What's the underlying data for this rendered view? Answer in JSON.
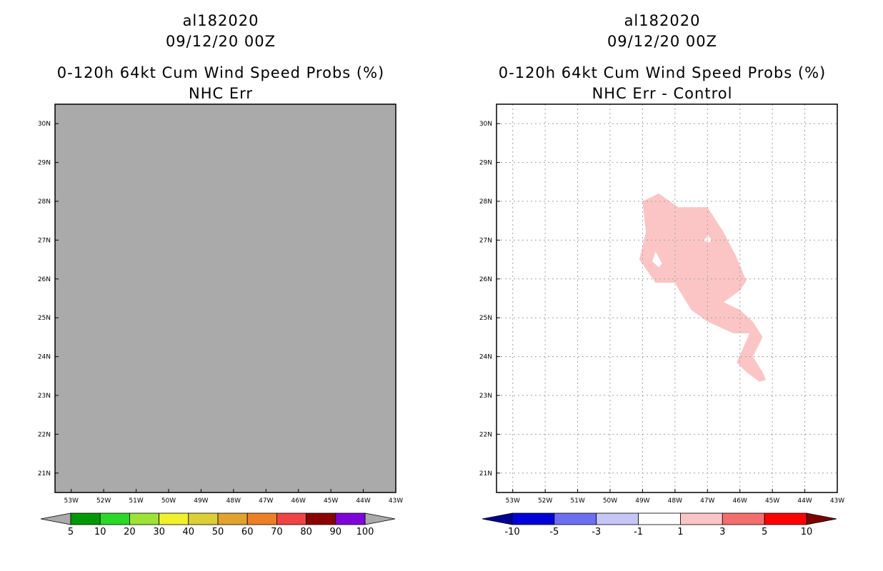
{
  "colors": {
    "land_gray": "#aaaaaa",
    "diff_pink": "#fcc5c5",
    "grid": "#a0a0a0"
  },
  "chart_data": [
    {
      "type": "heatmap",
      "title_lines": [
        "al182020",
        "09/12/20 00Z",
        "0-120h 64kt Cum Wind Speed Probs (%)",
        "NHC Err"
      ],
      "x_ticks": [
        "53W",
        "52W",
        "51W",
        "50W",
        "49W",
        "48W",
        "47W",
        "46W",
        "45W",
        "44W",
        "43W"
      ],
      "y_ticks": [
        "30N",
        "29N",
        "28N",
        "27N",
        "26N",
        "25N",
        "24N",
        "23N",
        "22N",
        "21N"
      ],
      "xlim": [
        -53.5,
        -43
      ],
      "ylim": [
        20.5,
        30.5
      ],
      "grid": false,
      "fill": "uniform gray (no probability above 5%)",
      "colorbar": {
        "labels": [
          "5",
          "10",
          "20",
          "30",
          "40",
          "50",
          "60",
          "70",
          "80",
          "90",
          "100"
        ],
        "colors": [
          "#009800",
          "#2ad82a",
          "#9de236",
          "#f0f02c",
          "#ddcf36",
          "#e1a22e",
          "#ed8026",
          "#f04444",
          "#8b0000",
          "#8000d8"
        ],
        "end_colors": [
          "#aaaaaa",
          "#aaaaaa"
        ]
      }
    },
    {
      "type": "heatmap",
      "title_lines": [
        "al182020",
        "09/12/20 00Z",
        "0-120h 64kt Cum Wind Speed Probs (%)",
        "NHC Err - Control"
      ],
      "x_ticks": [
        "53W",
        "52W",
        "51W",
        "50W",
        "49W",
        "48W",
        "47W",
        "46W",
        "45W",
        "44W",
        "43W"
      ],
      "y_ticks": [
        "30N",
        "29N",
        "28N",
        "27N",
        "26N",
        "25N",
        "24N",
        "23N",
        "22N",
        "21N"
      ],
      "xlim": [
        -53.5,
        -43
      ],
      "ylim": [
        20.5,
        30.5
      ],
      "grid": true,
      "region": {
        "category": "1 to 3",
        "lonlat": [
          [
            -49.0,
            28.0
          ],
          [
            -48.5,
            28.2
          ],
          [
            -47.9,
            27.85
          ],
          [
            -47.0,
            27.85
          ],
          [
            -46.5,
            27.2
          ],
          [
            -46.1,
            26.55
          ],
          [
            -45.8,
            25.95
          ],
          [
            -46.0,
            25.7
          ],
          [
            -46.5,
            25.4
          ],
          [
            -46.0,
            25.2
          ],
          [
            -45.6,
            24.9
          ],
          [
            -45.3,
            24.5
          ],
          [
            -45.6,
            24.0
          ],
          [
            -45.3,
            23.6
          ],
          [
            -45.2,
            23.4
          ],
          [
            -45.4,
            23.35
          ],
          [
            -45.8,
            23.6
          ],
          [
            -46.1,
            23.85
          ],
          [
            -45.7,
            24.6
          ],
          [
            -46.2,
            24.6
          ],
          [
            -47.0,
            24.9
          ],
          [
            -47.5,
            25.2
          ],
          [
            -47.9,
            25.75
          ],
          [
            -48.0,
            25.9
          ],
          [
            -48.6,
            25.9
          ],
          [
            -49.1,
            26.5
          ],
          [
            -48.9,
            27.2
          ]
        ],
        "holes": [
          [
            [
              -48.6,
              26.7
            ],
            [
              -48.4,
              26.4
            ],
            [
              -48.5,
              26.3
            ],
            [
              -48.7,
              26.45
            ]
          ],
          [
            [
              -46.98,
              27.12
            ],
            [
              -46.86,
              27.0
            ],
            [
              -46.98,
              26.93
            ],
            [
              -47.1,
              27.0
            ]
          ]
        ]
      },
      "colorbar": {
        "labels": [
          "-10",
          "-5",
          "-3",
          "-1",
          "1",
          "3",
          "5",
          "10"
        ],
        "colors": [
          "#0000d8",
          "#6e6ef2",
          "#c6c6f6",
          "#ffffff",
          "#fcc5c5",
          "#f46e6e",
          "#ff0000"
        ],
        "end_colors": [
          "#000090",
          "#7f0000"
        ]
      }
    }
  ]
}
